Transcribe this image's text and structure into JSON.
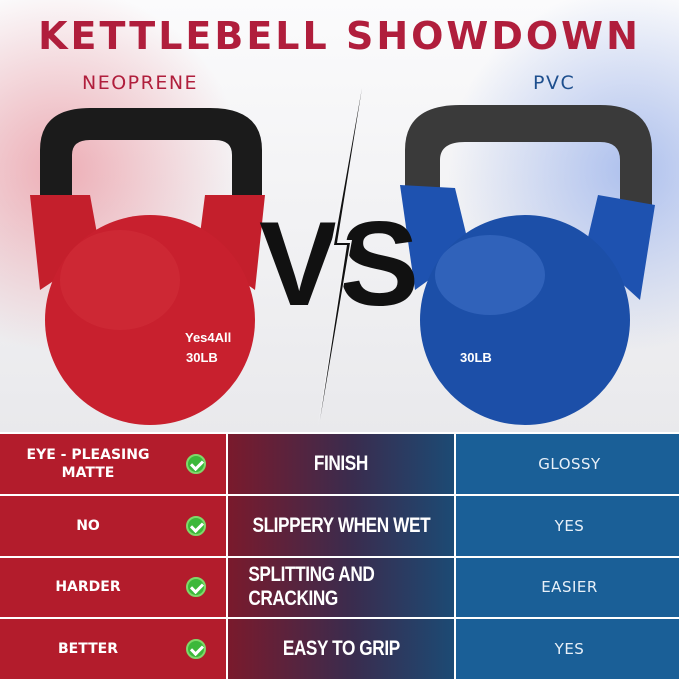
{
  "title": "KETTLEBELL SHOWDOWN",
  "left_label": "NEOPRENE",
  "right_label": "PVC",
  "vs": "VS",
  "left_product": {
    "brand": "Yes4All",
    "weight": "30LB",
    "color": "#c8202e"
  },
  "right_product": {
    "weight": "30LB",
    "color": "#1c4fa8"
  },
  "rows": [
    {
      "neoprene": "EYE - PLEASING MATTE",
      "feature": "FINISH",
      "pvc": "GLOSSY",
      "check_icon": "check-circle"
    },
    {
      "neoprene": "NO",
      "feature": "SLIPPERY WHEN WET",
      "pvc": "YES",
      "check_icon": "check-circle"
    },
    {
      "neoprene": "HARDER",
      "feature": "SPLITTING AND CRACKING",
      "pvc": "EASIER",
      "check_icon": "check-circle"
    },
    {
      "neoprene": "BETTER",
      "feature": "EASY TO GRIP",
      "pvc": "YES",
      "check_icon": "check-circle"
    }
  ],
  "colors": {
    "title": "#b01e3c",
    "neoprene_cell": "#b31c2c",
    "pvc_cell": "#1a5f97",
    "check": "#3cb83a"
  }
}
